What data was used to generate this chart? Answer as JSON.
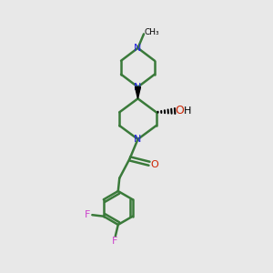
{
  "bg_color": "#e8e8e8",
  "bond_color": "#3a7a3a",
  "N_color": "#2222dd",
  "O_color": "#cc2200",
  "F_color": "#cc44cc",
  "bond_width": 1.8,
  "figsize": [
    3.0,
    3.0
  ],
  "dpi": 100,
  "methyl_label": "CH₃",
  "oh_label_O": "O",
  "oh_label_H": "H",
  "F_label": "F"
}
